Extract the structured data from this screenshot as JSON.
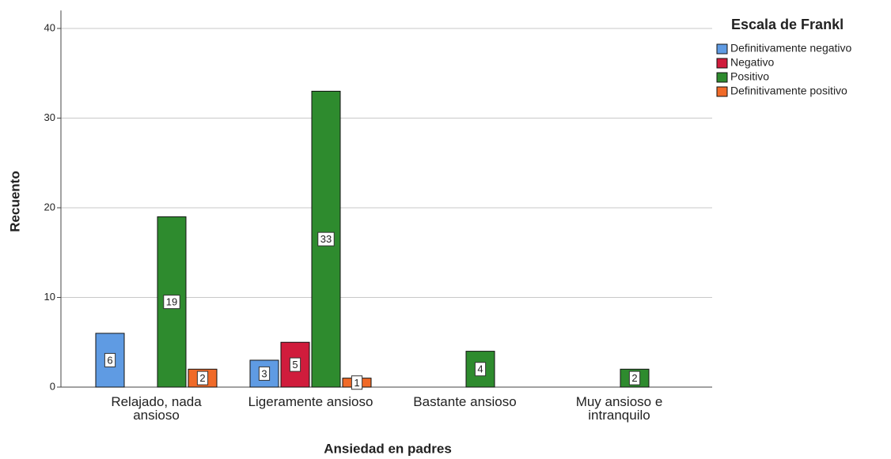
{
  "chart_data": {
    "type": "bar",
    "x_label": "Ansiedad en padres",
    "y_label": "Recuento",
    "legend_title": "Escala de Frankl",
    "legend_position": "right",
    "categories": [
      "Relajado, nada ansioso",
      "Ligeramente ansioso",
      "Bastante ansioso",
      "Muy ansioso e intranquilo"
    ],
    "series": [
      {
        "name": "Definitivamente negativo",
        "color": "#5f9be3",
        "values": [
          6,
          3,
          null,
          null
        ]
      },
      {
        "name": "Negativo",
        "color": "#d01c3c",
        "values": [
          null,
          5,
          null,
          null
        ]
      },
      {
        "name": "Positivo",
        "color": "#2e8b2e",
        "values": [
          19,
          33,
          4,
          2
        ]
      },
      {
        "name": "Definitivamente positivo",
        "color": "#f06a28",
        "values": [
          2,
          1,
          null,
          null
        ]
      }
    ],
    "ylim": [
      0,
      42
    ],
    "yticks": [
      0,
      10,
      20,
      30,
      40
    ],
    "grid": true
  }
}
